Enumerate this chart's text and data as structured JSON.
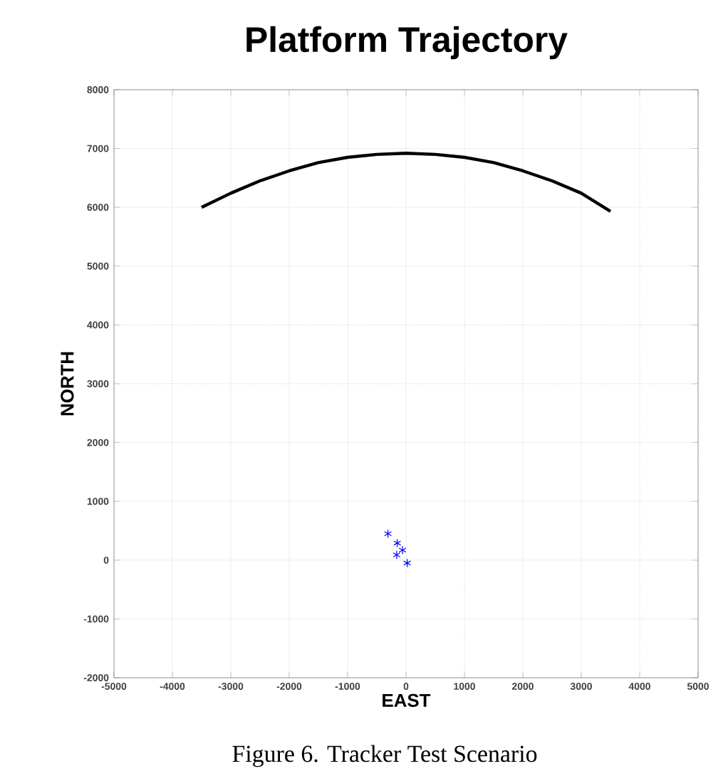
{
  "chart_data": {
    "type": "scatter",
    "title": "Platform Trajectory",
    "xlabel": "EAST",
    "ylabel": "NORTH",
    "annotations": [
      "Figure 6.  Tracker Test Scenario"
    ],
    "xlim": [
      -5000,
      5000
    ],
    "ylim": [
      -2000,
      8000
    ],
    "xticks": [
      -5000,
      -4000,
      -3000,
      -2000,
      -1000,
      0,
      1000,
      2000,
      3000,
      4000,
      5000
    ],
    "yticks": [
      -2000,
      -1000,
      0,
      1000,
      2000,
      3000,
      4000,
      5000,
      6000,
      7000,
      8000
    ],
    "grid": true,
    "series": [
      {
        "type": "line",
        "color": "#000000",
        "marker": "none",
        "x": [
          -3500,
          -3000,
          -2500,
          -2000,
          -1500,
          -1000,
          -500,
          0,
          500,
          1000,
          1500,
          2000,
          2500,
          3000,
          3500
        ],
        "values": [
          6000,
          6240,
          6450,
          6620,
          6760,
          6850,
          6900,
          6920,
          6900,
          6850,
          6760,
          6620,
          6450,
          6240,
          5930
        ]
      },
      {
        "color": "#0000ff",
        "marker": "cross",
        "x": [
          -310,
          -150,
          -60,
          -160,
          20
        ],
        "values": [
          450,
          290,
          170,
          90,
          -50
        ]
      }
    ]
  }
}
